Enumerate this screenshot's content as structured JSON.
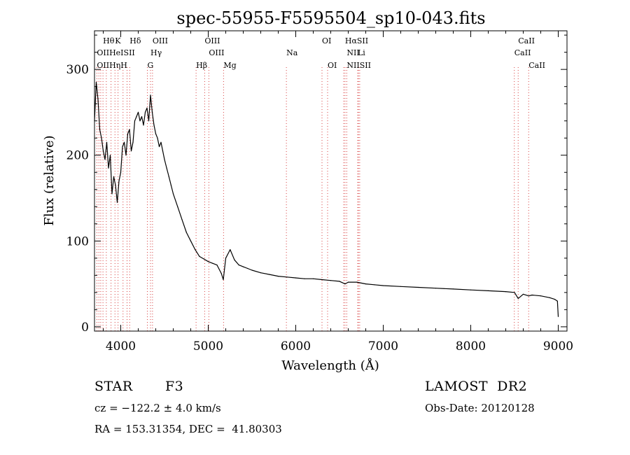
{
  "chart_data": {
    "type": "line",
    "title": "spec-55955-F5595504_sp10-043.fits",
    "xlabel": "Wavelength (Å)",
    "ylabel": "Flux (relative)",
    "xlim": [
      3700,
      9100
    ],
    "ylim": [
      -5,
      345
    ],
    "xticks": [
      4000,
      5000,
      6000,
      7000,
      8000,
      9000
    ],
    "yticks": [
      0,
      100,
      200,
      300
    ],
    "grid": false,
    "series": [
      {
        "color": "#000000",
        "x": [
          3700,
          3720,
          3740,
          3760,
          3780,
          3800,
          3820,
          3840,
          3860,
          3880,
          3900,
          3920,
          3940,
          3960,
          3980,
          4000,
          4020,
          4040,
          4060,
          4080,
          4100,
          4120,
          4140,
          4160,
          4180,
          4200,
          4220,
          4240,
          4260,
          4280,
          4300,
          4320,
          4340,
          4360,
          4380,
          4400,
          4420,
          4440,
          4460,
          4480,
          4500,
          4525,
          4550,
          4575,
          4600,
          4650,
          4700,
          4750,
          4800,
          4850,
          4900,
          4950,
          5000,
          5050,
          5100,
          5150,
          5172,
          5200,
          5250,
          5300,
          5350,
          5400,
          5450,
          5500,
          5600,
          5700,
          5800,
          5900,
          6000,
          6100,
          6200,
          6300,
          6400,
          6500,
          6563,
          6600,
          6700,
          6800,
          6900,
          7000,
          7200,
          7400,
          7600,
          7800,
          8000,
          8200,
          8400,
          8500,
          8542,
          8600,
          8662,
          8700,
          8800,
          8900,
          8960,
          8990,
          9000
        ],
        "y": [
          240,
          285,
          265,
          230,
          220,
          205,
          195,
          215,
          185,
          200,
          155,
          175,
          165,
          145,
          170,
          180,
          210,
          215,
          200,
          225,
          230,
          205,
          215,
          240,
          245,
          250,
          240,
          245,
          235,
          250,
          255,
          240,
          270,
          250,
          235,
          225,
          220,
          210,
          215,
          205,
          195,
          185,
          175,
          165,
          155,
          140,
          125,
          110,
          100,
          90,
          82,
          79,
          76,
          74,
          72,
          62,
          55,
          80,
          90,
          78,
          72,
          70,
          68,
          66,
          63,
          61,
          59,
          58,
          57,
          56,
          56,
          55,
          54,
          53,
          50,
          52,
          52,
          50,
          49,
          48,
          47,
          46,
          45,
          44,
          43,
          42,
          41,
          40,
          33,
          38,
          36,
          37,
          36,
          34,
          32,
          30,
          12
        ]
      }
    ],
    "line_groups": [
      {
        "row": 1,
        "labels": [
          {
            "text": "Hθ",
            "x": 3797
          },
          {
            "text": "K",
            "x": 3934
          },
          {
            "text": "Hδ",
            "x": 4102
          },
          {
            "text": "OIII",
            "x": 4363
          },
          {
            "text": "OIII",
            "x": 4959
          },
          {
            "text": "OI",
            "x": 6300
          },
          {
            "text": "HαSII",
            "x": 6563
          },
          {
            "text": "CaII",
            "x": 8542
          }
        ]
      },
      {
        "row": 2,
        "labels": [
          {
            "text": "OIIHeISII",
            "x": 3727
          },
          {
            "text": "Hγ",
            "x": 4340
          },
          {
            "text": "OIII",
            "x": 5007
          },
          {
            "text": "Na",
            "x": 5893
          },
          {
            "text": "NII",
            "x": 6583
          },
          {
            "text": "Li",
            "x": 6708
          },
          {
            "text": "CaII",
            "x": 8498
          }
        ]
      },
      {
        "row": 3,
        "labels": [
          {
            "text": "OIIHηH",
            "x": 3727
          },
          {
            "text": "G",
            "x": 4304
          },
          {
            "text": "Hβ",
            "x": 4861
          },
          {
            "text": "Mg",
            "x": 5175
          },
          {
            "text": "OI",
            "x": 6364
          },
          {
            "text": "NIISII",
            "x": 6583
          },
          {
            "text": "CaII",
            "x": 8662
          }
        ]
      }
    ],
    "line_marks": [
      3727,
      3750,
      3771,
      3797,
      3835,
      3889,
      3934,
      3969,
      4026,
      4072,
      4102,
      4304,
      4340,
      4363,
      4861,
      4959,
      5007,
      5175,
      5893,
      6300,
      6364,
      6548,
      6563,
      6583,
      6708,
      6717,
      6731,
      8498,
      8542,
      8662
    ]
  },
  "info": {
    "object_class": "STAR",
    "subclass": "F3",
    "survey": "LAMOST  DR2",
    "redshift": "cz = −122.2 ± 4.0 km/s",
    "obs_date": "Obs-Date: 20120128",
    "coords": "RA = 153.31354, DEC =  41.80303"
  }
}
